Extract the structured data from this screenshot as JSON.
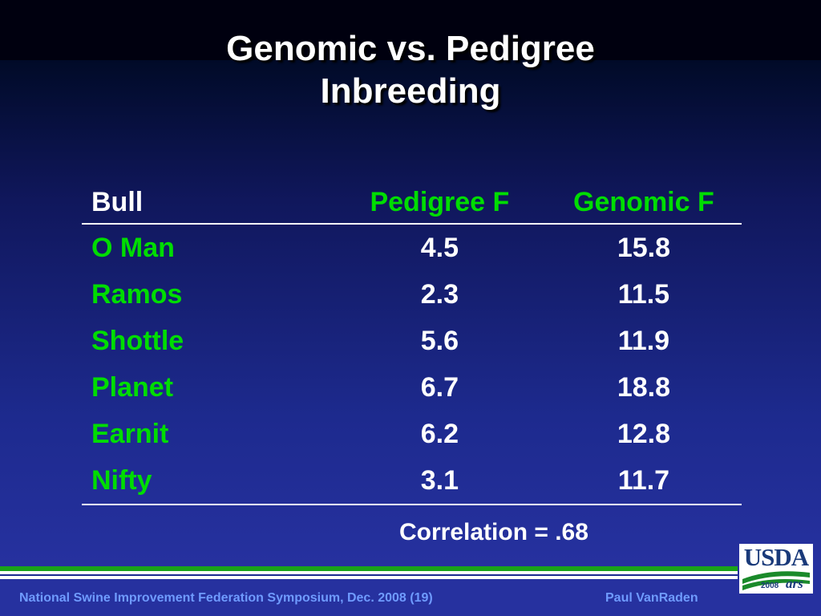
{
  "title": {
    "line1": "Genomic vs. Pedigree",
    "line2": "Inbreeding"
  },
  "table": {
    "headers": [
      "Bull",
      "Pedigree F",
      "Genomic F"
    ],
    "rows": [
      {
        "bull": "O Man",
        "pedigree_f": "4.5",
        "genomic_f": "15.8"
      },
      {
        "bull": "Ramos",
        "pedigree_f": "2.3",
        "genomic_f": "11.5"
      },
      {
        "bull": "Shottle",
        "pedigree_f": "5.6",
        "genomic_f": "11.9"
      },
      {
        "bull": "Planet",
        "pedigree_f": "6.7",
        "genomic_f": "18.8"
      },
      {
        "bull": "Earnit",
        "pedigree_f": "6.2",
        "genomic_f": "12.8"
      },
      {
        "bull": "Nifty",
        "pedigree_f": "3.1",
        "genomic_f": "11.7"
      }
    ]
  },
  "correlation": "Correlation = .68",
  "footer": {
    "left": "National Swine Improvement Federation Symposium, Dec. 2008 (19)",
    "right": "Paul VanRaden"
  },
  "logo": {
    "text": "USDA",
    "year": "2008",
    "ars": "ars"
  },
  "colors": {
    "accent_green": "#00dd00",
    "footer_blue": "#6f9bff",
    "background_navy": "#1d2a8e"
  }
}
